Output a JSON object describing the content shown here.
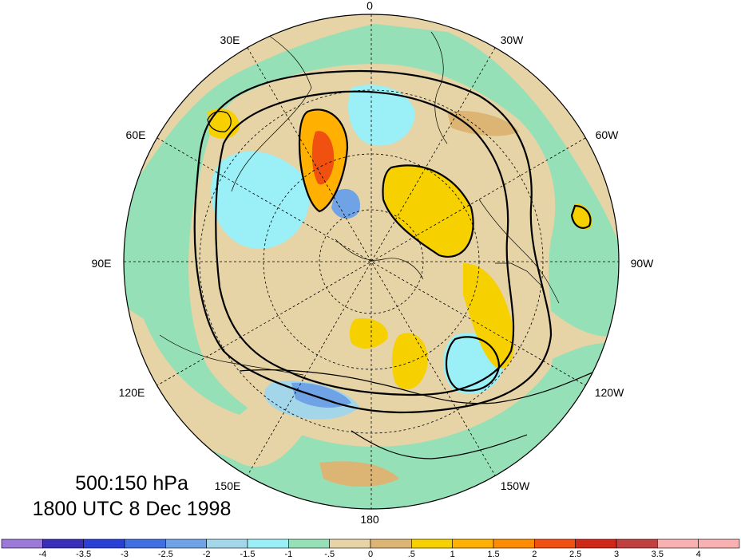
{
  "map": {
    "projection": "north-polar-stereographic",
    "longitude_labels": [
      "0",
      "30W",
      "60W",
      "90W",
      "120W",
      "150W",
      "180",
      "150E",
      "120E",
      "90E",
      "60E",
      "30E"
    ]
  },
  "caption": {
    "level": "500:150 hPa",
    "time": "1800 UTC 8 Dec 1998"
  },
  "colorbar": {
    "tick_labels": [
      "-4",
      "-3.5",
      "-3",
      "-2.5",
      "-2",
      "-1.5",
      "-1",
      "-.5",
      "0",
      ".5",
      "1",
      "1.5",
      "2",
      "2.5",
      "3",
      "3.5",
      "4"
    ],
    "colors": [
      "#9b79d6",
      "#3a2fb8",
      "#2a3fd6",
      "#3f6fe0",
      "#6fa3e6",
      "#a2d6e8",
      "#9af0f6",
      "#96e0b8",
      "#e6d3a6",
      "#dcb474",
      "#f7d000",
      "#ffb000",
      "#ff8c00",
      "#f05010",
      "#d02818",
      "#c04040",
      "#f8b0b0"
    ]
  },
  "colors": {
    "ocean_zero_band": "#96e0b8",
    "positive_light": "#e6d3a6",
    "negative_light": "#9af0f6"
  }
}
